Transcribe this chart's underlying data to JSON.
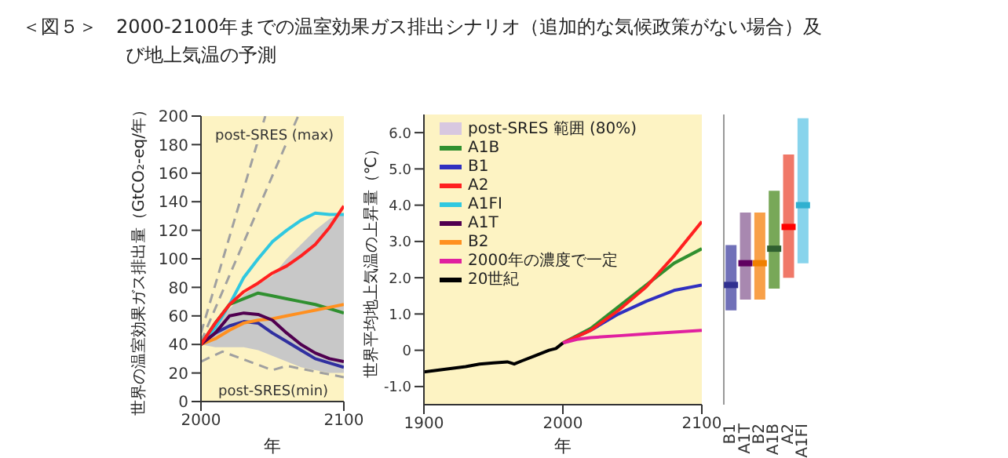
{
  "chart_data": [
    {
      "type": "line",
      "title": "＜図５＞　2000-2100年までの温室効果ガス排出シナリオ（追加的な気候政策がない場合）及び地上気温の予測",
      "xlabel": "年",
      "ylabel": "世界の温室効果ガス排出量（GtCO₂-eq/年）",
      "x": [
        2000,
        2010,
        2020,
        2030,
        2040,
        2050,
        2060,
        2070,
        2080,
        2090,
        2100
      ],
      "xlim": [
        2000,
        2100
      ],
      "xticks": [
        2000,
        2100
      ],
      "ylim": [
        0,
        200
      ],
      "yticks": [
        0,
        20,
        40,
        60,
        80,
        100,
        120,
        140,
        160,
        180,
        200
      ],
      "legend": false,
      "grid": false,
      "annotations": [
        "post-SRES (max)",
        "post-SRES(min)"
      ],
      "series": [
        {
          "type": "area",
          "color": "#c8c8c8",
          "values": [
            null,
            null,
            null,
            null,
            null,
            null,
            null,
            null,
            null,
            null,
            null
          ],
          "lower": [
            40,
            38,
            38,
            38,
            36,
            32,
            28,
            24,
            22,
            20,
            20
          ],
          "upper": [
            42,
            55,
            65,
            75,
            82,
            88,
            100,
            110,
            120,
            128,
            132
          ]
        },
        {
          "type": "line",
          "color": "#a0a0a0",
          "line_style": "dashed",
          "x": [
            2000,
            2045
          ],
          "values": [
            48,
            200
          ]
        },
        {
          "type": "line",
          "color": "#a0a0a0",
          "line_style": "dashed",
          "x": [
            2000,
            2068
          ],
          "values": [
            42,
            200
          ]
        },
        {
          "type": "line",
          "color": "#a0a0a0",
          "line_style": "dashed",
          "x": [
            2000,
            2015,
            2050,
            2060,
            2100
          ],
          "values": [
            28,
            35,
            22,
            25,
            17
          ]
        },
        {
          "type": "line",
          "color": "#30c8e0",
          "values": [
            40,
            52,
            68,
            87,
            100,
            112,
            120,
            127,
            132,
            131,
            131
          ]
        },
        {
          "type": "line",
          "color": "#309030",
          "values": [
            40,
            55,
            68,
            72,
            76,
            74,
            72,
            70,
            68,
            65,
            62
          ]
        },
        {
          "type": "line",
          "color": "#3030a0",
          "values": [
            40,
            48,
            53,
            56,
            55,
            48,
            42,
            36,
            30,
            27,
            24
          ]
        },
        {
          "type": "line",
          "color": "#ff9020",
          "values": [
            40,
            44,
            50,
            55,
            57,
            58,
            60,
            62,
            64,
            66,
            68
          ]
        },
        {
          "type": "line",
          "color": "#500050",
          "values": [
            40,
            48,
            60,
            62,
            61,
            57,
            48,
            40,
            34,
            30,
            28
          ]
        },
        {
          "type": "line",
          "color": "#ff2020",
          "values": [
            40,
            55,
            68,
            77,
            83,
            90,
            95,
            102,
            110,
            122,
            137
          ]
        }
      ]
    },
    {
      "type": "line",
      "xlabel": "年",
      "ylabel": "世界平均地上気温の上昇量（℃）",
      "xlim": [
        1900,
        2100
      ],
      "xticks": [
        1900,
        2000,
        2100
      ],
      "ylim": [
        -1.5,
        6.5
      ],
      "yticks": [
        {
          "value": -1,
          "label": "-1.0"
        },
        0,
        {
          "value": 1,
          "label": "1.0"
        },
        {
          "value": 2,
          "label": "2.0"
        },
        {
          "value": 3,
          "label": "3.0"
        },
        {
          "value": 4,
          "label": "4.0"
        },
        {
          "value": 5,
          "label": "5.0"
        },
        {
          "value": 6,
          "label": "6.0"
        }
      ],
      "legend": "top left",
      "grid": false,
      "series": [
        {
          "type": "area",
          "name": "post-SRES 範囲 (80%)",
          "color": "#d8c8e0"
        },
        {
          "type": "line",
          "name": "A1B",
          "color": "#309030",
          "x": [
            2000,
            2020,
            2040,
            2060,
            2080,
            2100
          ],
          "values": [
            0.2,
            0.6,
            1.2,
            1.8,
            2.4,
            2.8
          ]
        },
        {
          "type": "line",
          "name": "B1",
          "color": "#3030c0",
          "x": [
            2000,
            2020,
            2040,
            2060,
            2080,
            2100
          ],
          "values": [
            0.2,
            0.55,
            1.0,
            1.35,
            1.65,
            1.8
          ]
        },
        {
          "type": "line",
          "name": "A2",
          "color": "#ff2020",
          "x": [
            2000,
            2020,
            2040,
            2060,
            2080,
            2100
          ],
          "values": [
            0.2,
            0.55,
            1.1,
            1.75,
            2.6,
            3.55
          ]
        },
        {
          "type": "line",
          "name": "A1FI",
          "color": "#30c8e0"
        },
        {
          "type": "line",
          "name": "A1T",
          "color": "#500050"
        },
        {
          "type": "line",
          "name": "B2",
          "color": "#ff9020"
        },
        {
          "type": "line",
          "name": "2000年の濃度で一定",
          "color": "#e020a0",
          "x": [
            2000,
            2010,
            2020,
            2040,
            2060,
            2080,
            2100
          ],
          "values": [
            0.2,
            0.3,
            0.35,
            0.4,
            0.45,
            0.5,
            0.55
          ]
        },
        {
          "type": "line",
          "name": "20世紀",
          "color": "#000000",
          "x": [
            1900,
            1910,
            1920,
            1930,
            1940,
            1950,
            1960,
            1965,
            1970,
            1980,
            1990,
            1995,
            2000
          ],
          "values": [
            -0.6,
            -0.55,
            -0.5,
            -0.45,
            -0.38,
            -0.35,
            -0.32,
            -0.38,
            -0.3,
            -0.15,
            0.0,
            0.05,
            0.2
          ]
        }
      ]
    },
    {
      "type": "bar",
      "categories": [
        "B1",
        "A1T",
        "B2",
        "A1B",
        "A2",
        "A1FI"
      ],
      "ylim": [
        -1.5,
        6.5
      ],
      "tick_labels": "x",
      "series": [
        {
          "type": "bar",
          "colors": [
            "#7070b8",
            "#a888b0",
            "#f8a048",
            "#78a858",
            "#f07868",
            "#88d4ec"
          ],
          "base": [
            1.1,
            1.4,
            1.4,
            1.7,
            2.0,
            2.4
          ],
          "values": [
            1.8,
            2.4,
            2.4,
            2.7,
            3.4,
            4.0
          ]
        },
        {
          "type": "scatter",
          "marker": "square",
          "x": [
            "B1",
            "A1T",
            "B2",
            "A1B",
            "A2",
            "A1FI"
          ],
          "colors": [
            "#303090",
            "#600060",
            "#f08000",
            "#306030",
            "#ff0000",
            "#30b0d0"
          ],
          "values": [
            1.8,
            2.4,
            2.4,
            2.8,
            3.4,
            4.0
          ]
        }
      ]
    }
  ]
}
